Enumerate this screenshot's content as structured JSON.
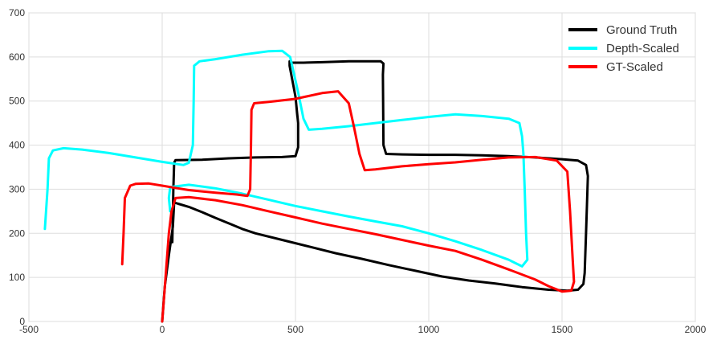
{
  "chart_data": {
    "type": "line",
    "title": "",
    "xlabel": "",
    "ylabel": "",
    "xlim": [
      -500,
      2000
    ],
    "ylim": [
      0,
      700
    ],
    "x_ticks": [
      -500,
      0,
      500,
      1000,
      1500,
      2000
    ],
    "y_ticks": [
      0,
      100,
      200,
      300,
      400,
      500,
      600,
      700
    ],
    "grid": true,
    "legend_position": "top-right",
    "series": [
      {
        "name": "Ground Truth",
        "color": "#000000",
        "points": [
          [
            0,
            0
          ],
          [
            10,
            80
          ],
          [
            25,
            150
          ],
          [
            40,
            215
          ],
          [
            45,
            270
          ],
          [
            60,
            267
          ],
          [
            100,
            260
          ],
          [
            150,
            248
          ],
          [
            200,
            235
          ],
          [
            260,
            220
          ],
          [
            300,
            210
          ],
          [
            350,
            200
          ],
          [
            450,
            185
          ],
          [
            550,
            170
          ],
          [
            650,
            155
          ],
          [
            750,
            142
          ],
          [
            850,
            128
          ],
          [
            950,
            115
          ],
          [
            1050,
            102
          ],
          [
            1150,
            93
          ],
          [
            1250,
            86
          ],
          [
            1350,
            78
          ],
          [
            1450,
            72
          ],
          [
            1520,
            70
          ],
          [
            1560,
            72
          ],
          [
            1580,
            85
          ],
          [
            1585,
            110
          ],
          [
            1590,
            200
          ],
          [
            1595,
            290
          ],
          [
            1597,
            330
          ],
          [
            1590,
            355
          ],
          [
            1560,
            365
          ],
          [
            1500,
            368
          ],
          [
            1400,
            372
          ],
          [
            1300,
            375
          ],
          [
            1200,
            377
          ],
          [
            1100,
            378
          ],
          [
            1000,
            378
          ],
          [
            900,
            379
          ],
          [
            840,
            380
          ],
          [
            830,
            400
          ],
          [
            828,
            560
          ],
          [
            830,
            585
          ],
          [
            820,
            590
          ],
          [
            700,
            590
          ],
          [
            600,
            588
          ],
          [
            530,
            587
          ],
          [
            480,
            587
          ],
          [
            478,
            590
          ],
          [
            478,
            580
          ],
          [
            500,
            510
          ],
          [
            510,
            450
          ],
          [
            510,
            395
          ],
          [
            500,
            375
          ],
          [
            450,
            373
          ],
          [
            350,
            372
          ],
          [
            250,
            370
          ],
          [
            150,
            367
          ],
          [
            50,
            366
          ],
          [
            45,
            360
          ],
          [
            42,
            300
          ],
          [
            40,
            240
          ],
          [
            38,
            180
          ]
        ]
      },
      {
        "name": "Depth-Scaled",
        "color": "#00ffff",
        "points": [
          [
            -440,
            210
          ],
          [
            -430,
            300
          ],
          [
            -425,
            370
          ],
          [
            -410,
            388
          ],
          [
            -370,
            393
          ],
          [
            -300,
            390
          ],
          [
            -200,
            382
          ],
          [
            -100,
            372
          ],
          [
            0,
            362
          ],
          [
            80,
            355
          ],
          [
            100,
            360
          ],
          [
            115,
            400
          ],
          [
            118,
            500
          ],
          [
            120,
            580
          ],
          [
            140,
            590
          ],
          [
            200,
            595
          ],
          [
            300,
            605
          ],
          [
            400,
            613
          ],
          [
            450,
            614
          ],
          [
            480,
            600
          ],
          [
            510,
            520
          ],
          [
            530,
            460
          ],
          [
            550,
            435
          ],
          [
            600,
            437
          ],
          [
            700,
            443
          ],
          [
            800,
            450
          ],
          [
            900,
            457
          ],
          [
            1000,
            464
          ],
          [
            1100,
            470
          ],
          [
            1200,
            466
          ],
          [
            1300,
            460
          ],
          [
            1340,
            450
          ],
          [
            1350,
            420
          ],
          [
            1355,
            380
          ],
          [
            1360,
            300
          ],
          [
            1365,
            200
          ],
          [
            1370,
            140
          ],
          [
            1350,
            125
          ],
          [
            1300,
            140
          ],
          [
            1200,
            162
          ],
          [
            1100,
            182
          ],
          [
            1000,
            200
          ],
          [
            900,
            216
          ],
          [
            800,
            227
          ],
          [
            700,
            238
          ],
          [
            600,
            250
          ],
          [
            500,
            262
          ],
          [
            400,
            276
          ],
          [
            300,
            290
          ],
          [
            200,
            302
          ],
          [
            100,
            310
          ],
          [
            30,
            305
          ],
          [
            25,
            280
          ],
          [
            30,
            250
          ]
        ]
      },
      {
        "name": "GT-Scaled",
        "color": "#ff0000",
        "points": [
          [
            -150,
            130
          ],
          [
            -145,
            200
          ],
          [
            -140,
            280
          ],
          [
            -120,
            308
          ],
          [
            -100,
            312
          ],
          [
            -50,
            313
          ],
          [
            0,
            308
          ],
          [
            50,
            303
          ],
          [
            100,
            298
          ],
          [
            200,
            292
          ],
          [
            280,
            288
          ],
          [
            320,
            285
          ],
          [
            330,
            300
          ],
          [
            333,
            400
          ],
          [
            335,
            480
          ],
          [
            345,
            495
          ],
          [
            400,
            498
          ],
          [
            500,
            505
          ],
          [
            600,
            518
          ],
          [
            660,
            522
          ],
          [
            700,
            495
          ],
          [
            720,
            440
          ],
          [
            740,
            380
          ],
          [
            760,
            343
          ],
          [
            800,
            345
          ],
          [
            900,
            352
          ],
          [
            1000,
            357
          ],
          [
            1100,
            361
          ],
          [
            1200,
            367
          ],
          [
            1300,
            372
          ],
          [
            1400,
            373
          ],
          [
            1480,
            365
          ],
          [
            1520,
            340
          ],
          [
            1530,
            250
          ],
          [
            1540,
            140
          ],
          [
            1545,
            90
          ],
          [
            1535,
            70
          ],
          [
            1500,
            68
          ],
          [
            1450,
            80
          ],
          [
            1400,
            95
          ],
          [
            1300,
            118
          ],
          [
            1200,
            140
          ],
          [
            1100,
            160
          ],
          [
            1000,
            172
          ],
          [
            900,
            185
          ],
          [
            800,
            198
          ],
          [
            700,
            210
          ],
          [
            600,
            222
          ],
          [
            500,
            236
          ],
          [
            400,
            250
          ],
          [
            300,
            264
          ],
          [
            200,
            275
          ],
          [
            100,
            282
          ],
          [
            50,
            280
          ],
          [
            35,
            250
          ],
          [
            25,
            200
          ],
          [
            15,
            120
          ],
          [
            5,
            40
          ],
          [
            0,
            0
          ]
        ]
      }
    ]
  }
}
